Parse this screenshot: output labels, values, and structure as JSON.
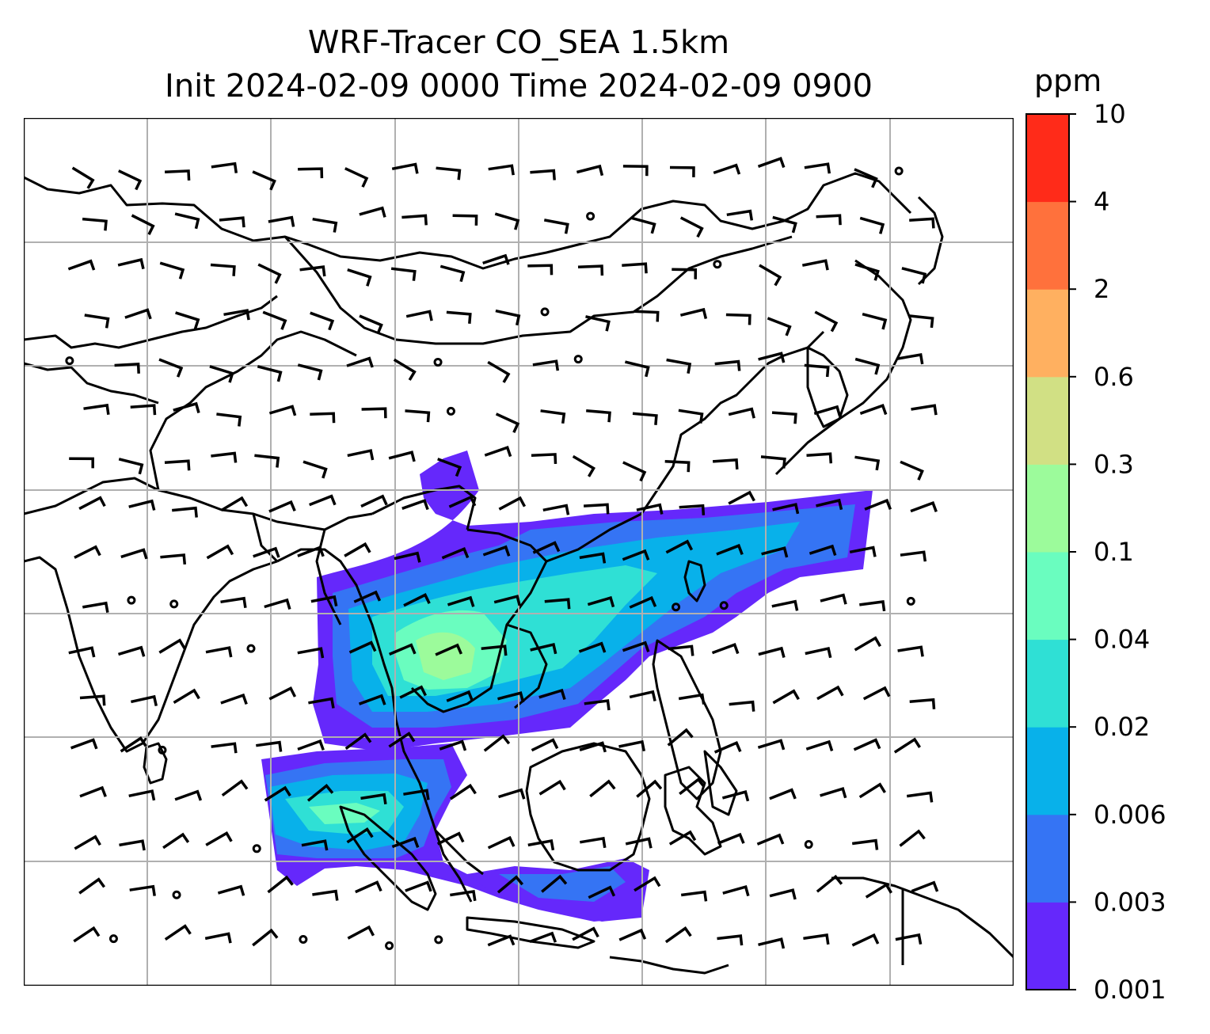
{
  "title": {
    "line1": "WRF-Tracer CO_SEA 1.5km",
    "line2": "Init 2024-02-09 0000 Time 2024-02-09 0900"
  },
  "colorbar": {
    "unit": "ppm",
    "levels": [
      "0.001",
      "0.003",
      "0.006",
      "0.02",
      "0.04",
      "0.1",
      "0.3",
      "0.6",
      "2",
      "4",
      "10"
    ],
    "colors": [
      "#6528fb",
      "#3574f4",
      "#08b1ea",
      "#2fe0d5",
      "#6afdbf",
      "#9cfb9b",
      "#d1e084",
      "#ffb060",
      "#ff713c",
      "#ff2b19"
    ]
  },
  "map": {
    "land_outline_color": "#000000",
    "gridline_color": "#b0b0b0",
    "background": "#ffffff",
    "overlays": [
      "coastlines",
      "country borders",
      "wind barbs",
      "tracer concentration fill"
    ]
  }
}
